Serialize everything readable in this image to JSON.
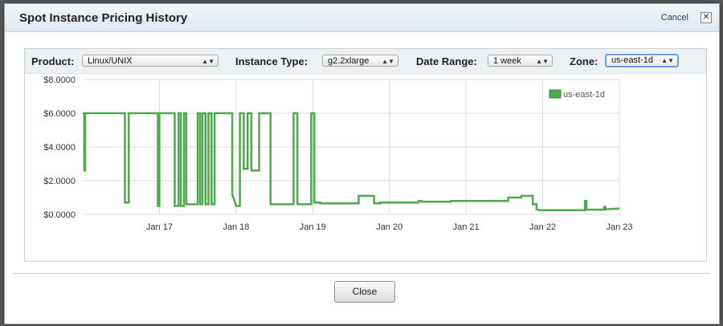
{
  "dialog": {
    "title": "Spot Instance Pricing History",
    "cancel_label": "Cancel",
    "close_x": "✕",
    "close_button": "Close"
  },
  "filters": {
    "product_label": "Product:",
    "product_value": "Linux/UNIX",
    "instance_label": "Instance Type:",
    "instance_value": "g2.2xlarge",
    "range_label": "Date Range:",
    "range_value": "1 week",
    "zone_label": "Zone:",
    "zone_value": "us-east-1d"
  },
  "colors": {
    "series": "#4ea84e",
    "grid": "#dddddd"
  },
  "chart_data": {
    "type": "line",
    "title": "",
    "xlabel": "",
    "ylabel": "",
    "ylim": [
      0,
      8
    ],
    "xlim": [
      16.0,
      23.0
    ],
    "y_ticks": [
      "$8.0000",
      "$6.0000",
      "$4.0000",
      "$2.0000",
      "$0.0000"
    ],
    "x_ticks": [
      "Jan 17",
      "Jan 18",
      "Jan 19",
      "Jan 20",
      "Jan 21",
      "Jan 22",
      "Jan 23"
    ],
    "x_tick_values": [
      17,
      18,
      19,
      20,
      21,
      22,
      23
    ],
    "legend": "top-right",
    "grid": true,
    "series": [
      {
        "name": "us-east-1d",
        "x": [
          16.0,
          16.02,
          16.02,
          16.03,
          16.03,
          16.55,
          16.55,
          16.6,
          16.6,
          16.98,
          16.98,
          17.0,
          17.0,
          17.2,
          17.2,
          17.25,
          17.25,
          17.28,
          17.28,
          17.32,
          17.32,
          17.35,
          17.35,
          17.5,
          17.5,
          17.53,
          17.53,
          17.56,
          17.56,
          17.6,
          17.6,
          17.64,
          17.64,
          17.68,
          17.68,
          17.72,
          17.72,
          17.95,
          17.95,
          18.0,
          18.02,
          18.05,
          18.05,
          18.1,
          18.1,
          18.15,
          18.15,
          18.2,
          18.2,
          18.3,
          18.3,
          18.45,
          18.45,
          18.75,
          18.75,
          18.8,
          18.8,
          18.98,
          18.98,
          19.02,
          19.02,
          19.1,
          19.1,
          19.1,
          19.6,
          19.6,
          19.8,
          19.8,
          19.88,
          19.88,
          20.38,
          20.38,
          20.42,
          20.42,
          20.8,
          20.8,
          21.0,
          21.0,
          21.55,
          21.55,
          21.72,
          21.72,
          21.87,
          21.87,
          21.92,
          21.92,
          21.96,
          22.0,
          22.55,
          22.55,
          22.57,
          22.57,
          22.8,
          22.8,
          22.82,
          22.82,
          23.0
        ],
        "y": [
          6.0,
          6.0,
          2.6,
          2.6,
          6.0,
          6.0,
          0.7,
          0.7,
          6.0,
          6.0,
          0.5,
          0.5,
          6.0,
          6.0,
          0.5,
          0.5,
          6.0,
          6.0,
          0.5,
          0.5,
          6.0,
          6.0,
          0.6,
          0.6,
          6.0,
          6.0,
          0.6,
          0.6,
          6.0,
          6.0,
          0.6,
          0.6,
          6.0,
          6.0,
          0.6,
          0.6,
          6.0,
          6.0,
          1.2,
          0.5,
          0.5,
          0.5,
          6.0,
          6.0,
          2.7,
          2.7,
          6.0,
          6.0,
          2.6,
          2.6,
          6.0,
          6.0,
          0.6,
          0.6,
          6.0,
          6.0,
          0.6,
          0.6,
          6.0,
          6.0,
          0.7,
          0.7,
          0.65,
          0.65,
          0.65,
          1.1,
          1.1,
          0.65,
          0.65,
          0.7,
          0.7,
          0.8,
          0.8,
          0.75,
          0.75,
          0.8,
          0.8,
          0.8,
          0.8,
          1.0,
          1.0,
          1.1,
          1.1,
          0.6,
          0.6,
          0.3,
          0.25,
          0.25,
          0.25,
          0.8,
          0.8,
          0.28,
          0.28,
          0.45,
          0.45,
          0.3,
          0.35
        ]
      }
    ]
  }
}
